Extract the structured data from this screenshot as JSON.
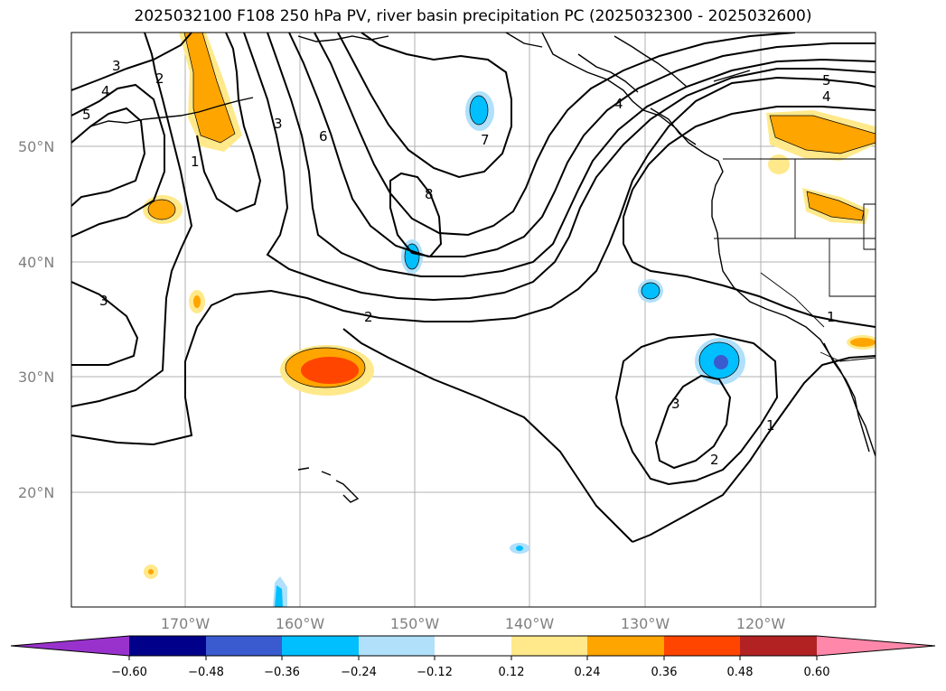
{
  "title": "2025032100 F108 250 hPa PV, river basin precipitation PC (2025032300 - 2025032600)",
  "map": {
    "lat_labels": [
      "50°N",
      "40°N",
      "30°N",
      "20°N"
    ],
    "lon_labels": [
      "170°W",
      "160°W",
      "150°W",
      "140°W",
      "130°W",
      "120°W"
    ],
    "contour_labels": [
      "3",
      "2",
      "4",
      "5",
      "1",
      "3",
      "6",
      "8",
      "7",
      "5",
      "4",
      "4",
      "3",
      "2",
      "1",
      "3",
      "2",
      "1"
    ],
    "land_color": "#ffffff",
    "grid_color": "#b0b0b0"
  },
  "colorbar": {
    "ticks": [
      "−0.60",
      "−0.48",
      "−0.36",
      "−0.24",
      "−0.12",
      "0.12",
      "0.24",
      "0.36",
      "0.48",
      "0.60"
    ],
    "colors": [
      "#9932cc",
      "#00008b",
      "#3a5bd0",
      "#00bfff",
      "#b0e0fa",
      "#ffffff",
      "#ffe98a",
      "#ffa500",
      "#ff4500",
      "#b22222",
      "#ff88aa"
    ]
  }
}
